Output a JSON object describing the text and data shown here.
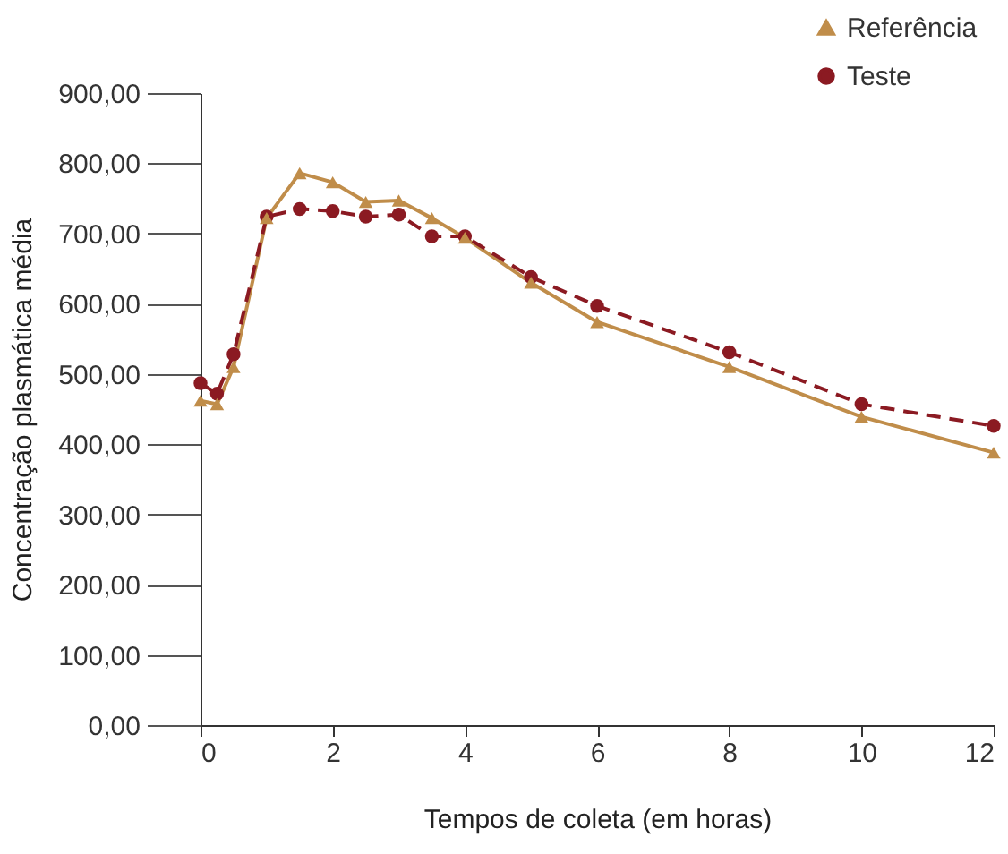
{
  "chart_data": {
    "type": "line",
    "xlabel": "Tempos de coleta (em horas)",
    "ylabel": "Concentração plasmática média",
    "x": [
      0,
      0.25,
      0.5,
      1,
      1.5,
      2,
      2.5,
      3,
      3.5,
      4,
      5,
      6,
      8,
      10,
      12
    ],
    "xlim": [
      0,
      12
    ],
    "xticks": [
      0,
      2,
      4,
      6,
      8,
      10,
      12
    ],
    "ylim": [
      0,
      900
    ],
    "yticks": [
      {
        "value": 0,
        "label": "0,00"
      },
      {
        "value": 100,
        "label": "100,00"
      },
      {
        "value": 200,
        "label": "200,00"
      },
      {
        "value": 300,
        "label": "300,00"
      },
      {
        "value": 400,
        "label": "400,00"
      },
      {
        "value": 500,
        "label": "500,00"
      },
      {
        "value": 600,
        "label": "600,00"
      },
      {
        "value": 700,
        "label": "700,00"
      },
      {
        "value": 800,
        "label": "800,00"
      },
      {
        "value": 900,
        "label": "900,00"
      }
    ],
    "grid": false,
    "legend": "top right",
    "series": [
      {
        "name": "Referência",
        "color": "#c08d4a",
        "marker": "triangle",
        "line_style": "solid",
        "values": [
          462,
          457,
          510,
          722,
          786,
          773,
          745,
          747,
          722,
          694,
          630,
          574,
          510,
          439,
          388
        ]
      },
      {
        "name": "Teste",
        "color": "#8b1a22",
        "marker": "circle",
        "line_style": "dashed",
        "values": [
          487,
          472,
          528,
          724,
          735,
          732,
          724,
          727,
          696,
          696,
          638,
          597,
          531,
          457,
          426
        ]
      }
    ]
  }
}
